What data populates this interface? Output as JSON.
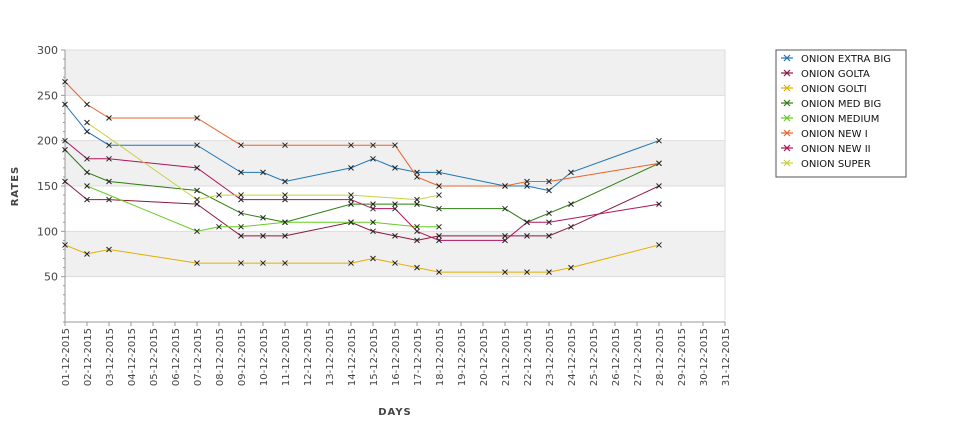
{
  "chart_data": {
    "type": "line",
    "xlabel": "DAYS",
    "ylabel": "RATES",
    "ylim": [
      0,
      300
    ],
    "yticks": [
      50,
      100,
      150,
      200,
      250,
      300
    ],
    "grid": "horizontal bands",
    "legend_position": "top-right",
    "x": [
      "01-12-2015",
      "02-12-2015",
      "03-12-2015",
      "04-12-2015",
      "05-12-2015",
      "06-12-2015",
      "07-12-2015",
      "08-12-2015",
      "09-12-2015",
      "10-12-2015",
      "11-12-2015",
      "12-12-2015",
      "13-12-2015",
      "14-12-2015",
      "15-12-2015",
      "16-12-2015",
      "17-12-2015",
      "18-12-2015",
      "19-12-2015",
      "20-12-2015",
      "21-12-2015",
      "22-12-2015",
      "23-12-2015",
      "24-12-2015",
      "25-12-2015",
      "26-12-2015",
      "27-12-2015",
      "28-12-2015",
      "29-12-2015",
      "30-12-2015",
      "31-12-2015"
    ],
    "series": [
      {
        "name": "ONION EXTRA BIG",
        "color": "#1f77b4",
        "values": [
          240,
          210,
          195,
          null,
          null,
          null,
          195,
          null,
          165,
          165,
          155,
          null,
          null,
          170,
          180,
          170,
          165,
          165,
          null,
          null,
          150,
          150,
          145,
          165,
          null,
          null,
          null,
          200,
          null,
          null,
          null
        ]
      },
      {
        "name": "ONION GOLTA",
        "color": "#8b1a3a",
        "values": [
          155,
          135,
          135,
          null,
          null,
          null,
          130,
          null,
          95,
          95,
          95,
          null,
          null,
          110,
          100,
          95,
          90,
          95,
          null,
          null,
          95,
          95,
          95,
          105,
          null,
          null,
          null,
          150,
          null,
          null,
          null
        ]
      },
      {
        "name": "ONION GOLTI",
        "color": "#e0b000",
        "values": [
          85,
          75,
          80,
          null,
          null,
          null,
          65,
          null,
          65,
          65,
          65,
          null,
          null,
          65,
          70,
          65,
          60,
          55,
          null,
          null,
          55,
          55,
          55,
          60,
          null,
          null,
          null,
          85,
          null,
          null,
          null
        ]
      },
      {
        "name": "ONION MED BIG",
        "color": "#2e7d12",
        "values": [
          190,
          165,
          155,
          null,
          null,
          null,
          145,
          null,
          120,
          115,
          110,
          null,
          null,
          130,
          130,
          130,
          130,
          125,
          null,
          null,
          125,
          110,
          120,
          130,
          null,
          null,
          null,
          175,
          null,
          null,
          null
        ]
      },
      {
        "name": "ONION MEDIUM",
        "color": "#66cc22",
        "values": [
          null,
          150,
          null,
          null,
          null,
          null,
          100,
          105,
          105,
          null,
          110,
          null,
          null,
          110,
          110,
          null,
          105,
          105,
          null,
          null,
          null,
          null,
          null,
          null,
          null,
          null,
          null,
          null,
          null,
          null,
          null
        ]
      },
      {
        "name": "ONION NEW I",
        "color": "#e8642a",
        "values": [
          265,
          240,
          225,
          null,
          null,
          null,
          225,
          null,
          195,
          null,
          195,
          null,
          null,
          195,
          195,
          195,
          160,
          150,
          null,
          null,
          150,
          155,
          155,
          null,
          null,
          null,
          null,
          175,
          null,
          null,
          null
        ]
      },
      {
        "name": "ONION NEW II",
        "color": "#b0125a",
        "values": [
          200,
          180,
          180,
          null,
          null,
          null,
          170,
          null,
          135,
          null,
          135,
          null,
          null,
          135,
          125,
          125,
          100,
          90,
          null,
          null,
          90,
          110,
          110,
          null,
          null,
          null,
          null,
          130,
          null,
          null,
          null
        ]
      },
      {
        "name": "ONION SUPER",
        "color": "#c8d040",
        "values": [
          null,
          220,
          null,
          null,
          null,
          null,
          135,
          140,
          140,
          null,
          140,
          null,
          null,
          140,
          null,
          null,
          135,
          140,
          null,
          null,
          null,
          null,
          null,
          null,
          null,
          null,
          null,
          null,
          null,
          null,
          null
        ]
      }
    ]
  }
}
